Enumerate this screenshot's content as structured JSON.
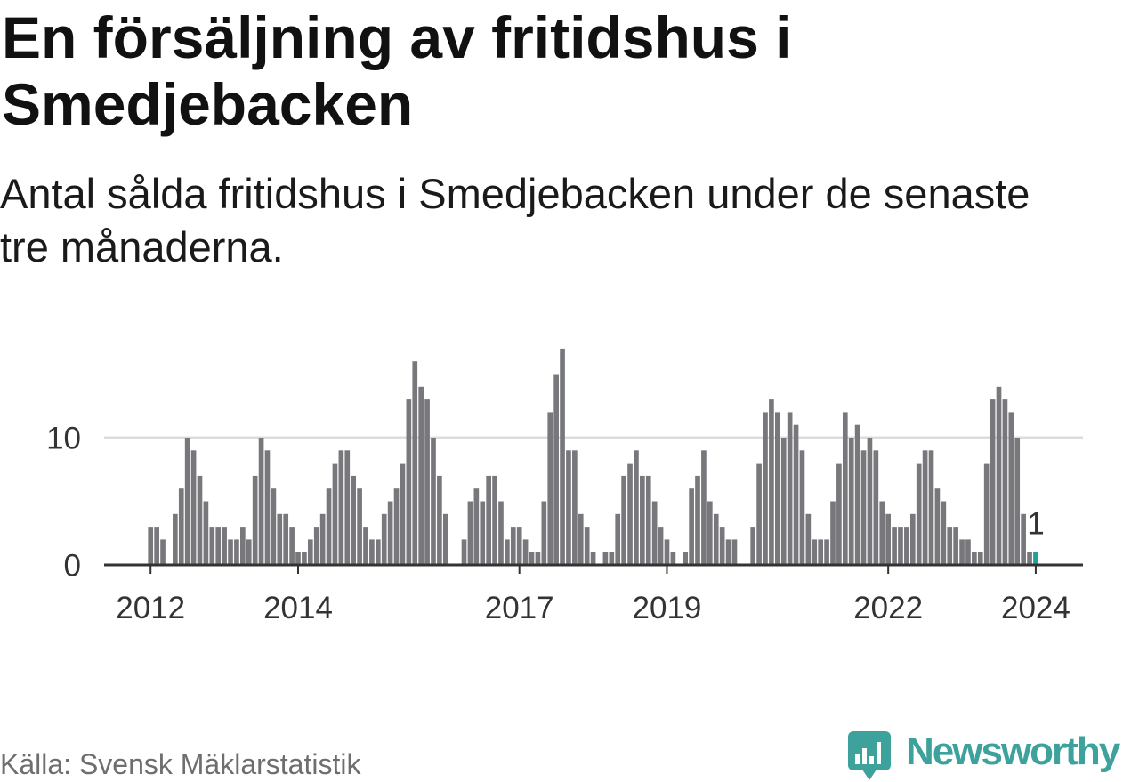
{
  "chart_data": {
    "type": "bar",
    "title": "En försäljning av fritidshus i Smedjebacken",
    "subtitle": "Antal sålda fritidshus i Smedjebacken under de senaste tre månaderna.",
    "source": "Källa: Svensk Mäklarstatistik",
    "x_start": 2012,
    "x_step": 0.0833333,
    "values": [
      3,
      3,
      2,
      0,
      4,
      6,
      10,
      9,
      7,
      5,
      3,
      3,
      3,
      2,
      2,
      3,
      2,
      7,
      10,
      9,
      6,
      4,
      4,
      3,
      1,
      1,
      2,
      3,
      4,
      6,
      8,
      9,
      9,
      7,
      6,
      3,
      2,
      2,
      4,
      5,
      6,
      8,
      13,
      16,
      14,
      13,
      10,
      7,
      4,
      0,
      0,
      2,
      5,
      6,
      5,
      7,
      7,
      5,
      2,
      3,
      3,
      2,
      1,
      1,
      5,
      12,
      15,
      17,
      9,
      9,
      4,
      3,
      1,
      0,
      1,
      1,
      4,
      7,
      8,
      9,
      7,
      7,
      5,
      3,
      2,
      1,
      0,
      1,
      6,
      7,
      9,
      5,
      4,
      3,
      2,
      2,
      0,
      0,
      3,
      8,
      12,
      13,
      12,
      10,
      12,
      11,
      9,
      4,
      2,
      2,
      2,
      5,
      8,
      12,
      10,
      11,
      9,
      10,
      9,
      5,
      4,
      3,
      3,
      3,
      4,
      8,
      9,
      9,
      6,
      5,
      3,
      3,
      2,
      2,
      1,
      1,
      8,
      13,
      14,
      13,
      12,
      10,
      4,
      1,
      1
    ],
    "x_ticks": [
      2012,
      2014,
      2017,
      2019,
      2022,
      2024
    ],
    "y_ticks": [
      0,
      10
    ],
    "xlim": [
      2011.37,
      2024.64
    ],
    "ylim": [
      0,
      17.5
    ],
    "grid": true,
    "highlight_label": "1"
  },
  "logo": {
    "text": "Newsworthy",
    "icon": "newsworthy-bar-chart-icon"
  },
  "colors": {
    "bar": "#78777c",
    "highlight": "#1fa398",
    "grid": "#dcdcdc",
    "axis": "#333333",
    "brand": "#3da29b"
  }
}
